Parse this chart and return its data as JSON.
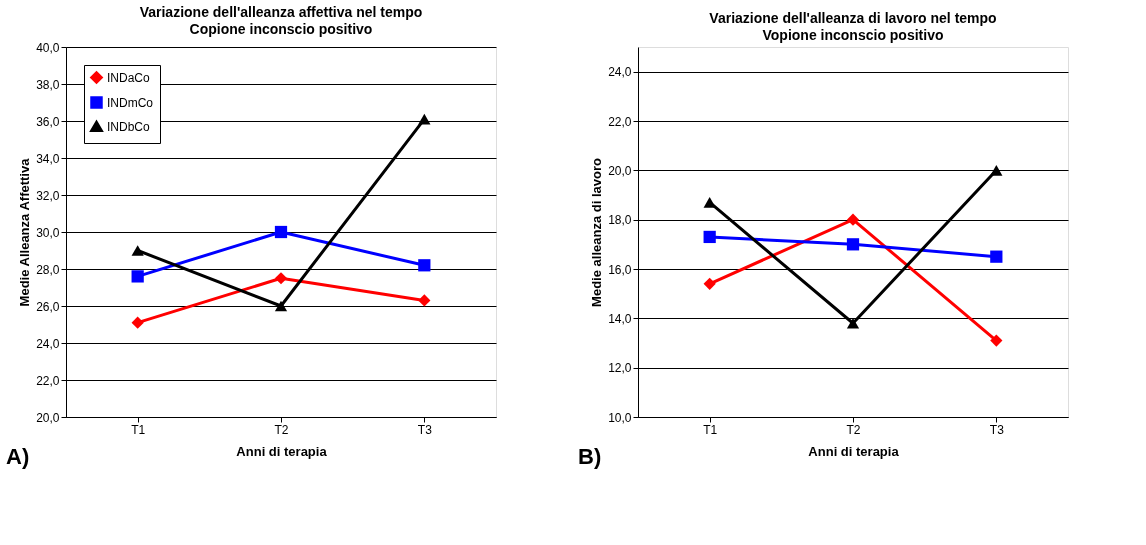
{
  "chart_data": [
    {
      "type": "line",
      "title": "Variazione dell'alleanza affettiva nel tempo",
      "subtitle": "Copione inconscio positivo",
      "xlabel": "Anni di terapia",
      "ylabel": "Medie Alleanza Affettiva",
      "categories": [
        "T1",
        "T2",
        "T3"
      ],
      "series": [
        {
          "name": "INDaCo",
          "color": "#ff0000",
          "marker": "diamond",
          "values": [
            25.1,
            27.5,
            26.3
          ]
        },
        {
          "name": "INDmCo",
          "color": "#0000ff",
          "marker": "square",
          "values": [
            27.6,
            30.0,
            28.2
          ]
        },
        {
          "name": "INDbCo",
          "color": "#000000",
          "marker": "triangle",
          "values": [
            29.0,
            26.0,
            36.1
          ]
        }
      ],
      "ylim": [
        20,
        40
      ],
      "yticks": [
        {
          "value": 20,
          "label": "20,0"
        },
        {
          "value": 22,
          "label": "22,0"
        },
        {
          "value": 24,
          "label": "24,0"
        },
        {
          "value": 26,
          "label": "26,0"
        },
        {
          "value": 28,
          "label": "28,0"
        },
        {
          "value": 30,
          "label": "30,0"
        },
        {
          "value": 32,
          "label": "32,0"
        },
        {
          "value": 34,
          "label": "34,0"
        },
        {
          "value": 36,
          "label": "36,0"
        },
        {
          "value": 38,
          "label": "38,0"
        },
        {
          "value": 40,
          "label": "40,0"
        }
      ],
      "grid": "y",
      "legend": "top left",
      "annotations": [
        "A)"
      ]
    },
    {
      "type": "line",
      "title": "Variazione dell'alleanza di lavoro nel tempo",
      "subtitle": "Vopione inconscio positivo",
      "xlabel": "Anni di terapia",
      "ylabel": "Medie alleanza di lavoro",
      "categories": [
        "T1",
        "T2",
        "T3"
      ],
      "series": [
        {
          "name": "INDaCo",
          "color": "#ff0000",
          "marker": "diamond",
          "values": [
            15.4,
            18.0,
            13.1
          ]
        },
        {
          "name": "INDmCo",
          "color": "#0000ff",
          "marker": "square",
          "values": [
            17.3,
            17.0,
            16.5
          ]
        },
        {
          "name": "INDbCo",
          "color": "#000000",
          "marker": "triangle",
          "values": [
            18.7,
            13.8,
            20.0
          ]
        }
      ],
      "ylim": [
        10,
        25
      ],
      "yticks": [
        {
          "value": 10,
          "label": "10,0"
        },
        {
          "value": 12,
          "label": "12,0"
        },
        {
          "value": 14,
          "label": "14,0"
        },
        {
          "value": 16,
          "label": "16,0"
        },
        {
          "value": 18,
          "label": "18,0"
        },
        {
          "value": 20,
          "label": "20,0"
        },
        {
          "value": 22,
          "label": "22,0"
        },
        {
          "value": 24,
          "label": "24,0"
        }
      ],
      "grid": "y",
      "legend": "top left",
      "annotations": [
        "B)"
      ]
    }
  ]
}
